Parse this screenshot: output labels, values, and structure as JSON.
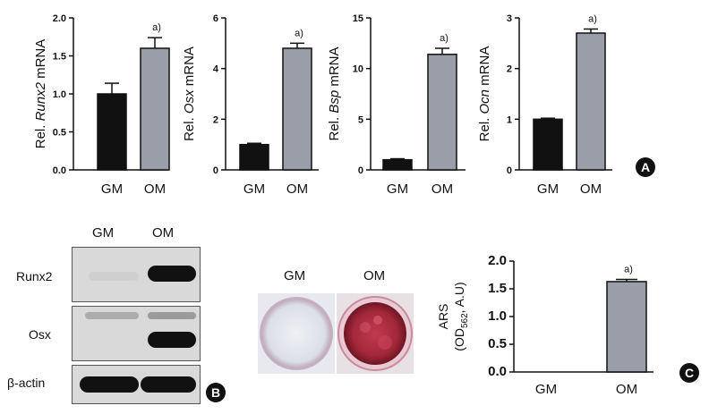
{
  "panels": {
    "A": "A",
    "B": "B",
    "C": "C"
  },
  "chart_data": [
    {
      "type": "bar",
      "ylabel_prefix": "Rel. ",
      "ylabel_gene": "Runx2",
      "ylabel_suffix": " mRNA",
      "categories": [
        "GM",
        "OM"
      ],
      "values": [
        1.0,
        1.6
      ],
      "errors": [
        0.14,
        0.14
      ],
      "annotation": "a)",
      "ylim": [
        0,
        2.0
      ],
      "yticks": [
        "0.0",
        "0.5",
        "1.0",
        "1.5",
        "2.0"
      ],
      "colors": [
        "#111111",
        "#9a9ea8"
      ]
    },
    {
      "type": "bar",
      "ylabel_prefix": "Rel. ",
      "ylabel_gene": "Osx",
      "ylabel_suffix": " mRNA",
      "categories": [
        "GM",
        "OM"
      ],
      "values": [
        1.0,
        4.8
      ],
      "errors": [
        0.05,
        0.2
      ],
      "annotation": "a)",
      "ylim": [
        0,
        6
      ],
      "yticks": [
        "0",
        "2",
        "4",
        "6"
      ],
      "colors": [
        "#111111",
        "#9a9ea8"
      ]
    },
    {
      "type": "bar",
      "ylabel_prefix": "Rel. ",
      "ylabel_gene": "Bsp",
      "ylabel_suffix": " mRNA",
      "categories": [
        "GM",
        "OM"
      ],
      "values": [
        1.0,
        11.4
      ],
      "errors": [
        0.1,
        0.6
      ],
      "annotation": "a)",
      "ylim": [
        0,
        15
      ],
      "yticks": [
        "0",
        "5",
        "10",
        "15"
      ],
      "colors": [
        "#111111",
        "#9a9ea8"
      ]
    },
    {
      "type": "bar",
      "ylabel_prefix": "Rel. ",
      "ylabel_gene": "Ocn",
      "ylabel_suffix": " mRNA",
      "categories": [
        "GM",
        "OM"
      ],
      "values": [
        1.0,
        2.7
      ],
      "errors": [
        0.02,
        0.08
      ],
      "annotation": "a)",
      "ylim": [
        0,
        3
      ],
      "yticks": [
        "0",
        "1",
        "2",
        "3"
      ],
      "colors": [
        "#111111",
        "#9a9ea8"
      ]
    },
    {
      "type": "bar",
      "ylabel_line1": "ARS",
      "ylabel_line2_pre": "(OD",
      "ylabel_line2_sub": "562",
      "ylabel_line2_post": ", A.U)",
      "categories": [
        "GM",
        "OM"
      ],
      "values": [
        0.0,
        1.63
      ],
      "errors": [
        0.0,
        0.04
      ],
      "annotation": "a)",
      "ylim": [
        0,
        2.0
      ],
      "yticks": [
        "0.0",
        "0.5",
        "1.0",
        "1.5",
        "2.0"
      ],
      "colors": [
        "#111111",
        "#9a9ea8"
      ]
    }
  ],
  "western_blot": {
    "lanes": [
      "GM",
      "OM"
    ],
    "rows": [
      {
        "label": "Runx2",
        "levels": [
          0.05,
          1.0
        ]
      },
      {
        "label": "Osx",
        "levels": [
          0.25,
          0.95
        ]
      },
      {
        "label": "β-actin",
        "levels": [
          0.95,
          0.95
        ]
      }
    ]
  },
  "staining": {
    "lanes": [
      "GM",
      "OM"
    ]
  }
}
